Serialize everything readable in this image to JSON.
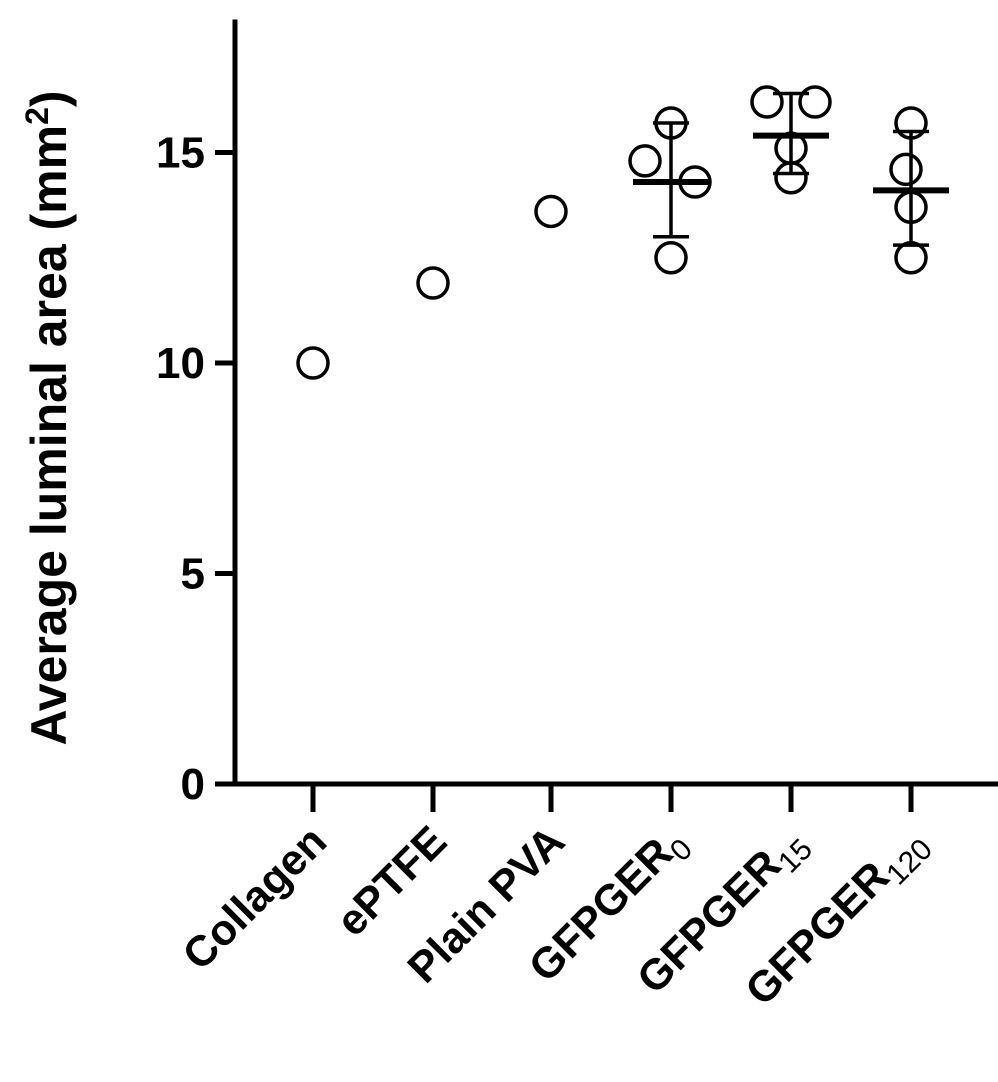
{
  "chart_data": {
    "type": "scatter",
    "title": "",
    "ylabel": "Average luminal area (mm",
    "ylabel_sup": "2",
    "ylabel_close": ")",
    "ylim": [
      0,
      18
    ],
    "yticks": [
      0,
      5,
      10,
      15
    ],
    "grid": false,
    "categories": [
      {
        "main": "Collagen",
        "sub": ""
      },
      {
        "main": "ePTFE",
        "sub": ""
      },
      {
        "main": "Plain PVA",
        "sub": ""
      },
      {
        "main": "GFPGER",
        "sub": "0"
      },
      {
        "main": "GFPGER",
        "sub": "15"
      },
      {
        "main": "GFPGER",
        "sub": "120"
      }
    ],
    "groups": [
      {
        "points": [
          10.0
        ]
      },
      {
        "points": [
          11.9
        ]
      },
      {
        "points": [
          13.6
        ]
      },
      {
        "points": [
          15.7,
          14.8,
          14.3,
          12.5
        ],
        "mean": 14.3,
        "sd_low": 13.0,
        "sd_high": 15.7
      },
      {
        "points": [
          16.2,
          16.2,
          15.1,
          14.4
        ],
        "mean": 15.4,
        "sd_low": 14.5,
        "sd_high": 16.4
      },
      {
        "points": [
          15.7,
          14.6,
          13.7,
          12.5
        ],
        "mean": 14.1,
        "sd_low": 12.8,
        "sd_high": 15.5
      }
    ]
  }
}
